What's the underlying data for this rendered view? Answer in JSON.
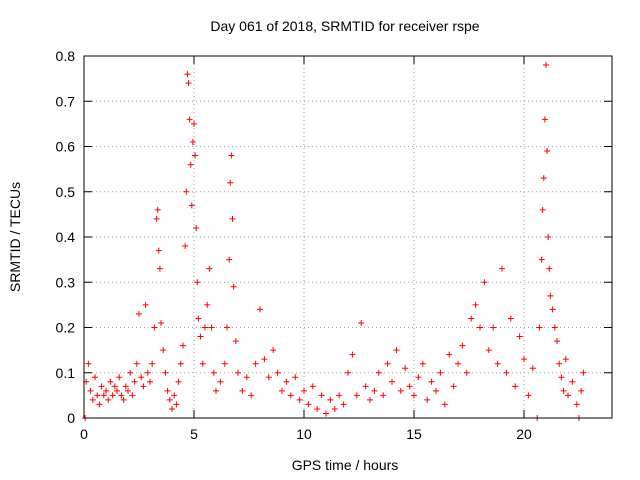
{
  "chart_data": {
    "type": "scatter",
    "title": "Day 061 of 2018, SRMTID for receiver rspe",
    "xlabel": "GPS time / hours",
    "ylabel": "SRMTID / TECUs",
    "xlim": [
      0,
      24
    ],
    "ylim": [
      0,
      0.8
    ],
    "x_ticks": [
      0,
      5,
      10,
      15,
      20
    ],
    "y_ticks": [
      0,
      0.1,
      0.2,
      0.3,
      0.4,
      0.5,
      0.6,
      0.7,
      0.8
    ],
    "x_tick_labels": [
      "0",
      "5",
      "10",
      "15",
      "20"
    ],
    "y_tick_labels": [
      "0",
      "0.1",
      "0.2",
      "0.3",
      "0.4",
      "0.5",
      "0.6",
      "0.7",
      "0.8"
    ],
    "grid": true,
    "marker": "+",
    "color": "#ff0000",
    "series": [
      {
        "name": "SRMTID",
        "points": [
          [
            0.05,
            0.0
          ],
          [
            0.1,
            0.08
          ],
          [
            0.2,
            0.12
          ],
          [
            0.3,
            0.06
          ],
          [
            0.4,
            0.04
          ],
          [
            0.5,
            0.09
          ],
          [
            0.6,
            0.05
          ],
          [
            0.7,
            0.03
          ],
          [
            0.8,
            0.07
          ],
          [
            0.9,
            0.05
          ],
          [
            1.0,
            0.06
          ],
          [
            1.1,
            0.04
          ],
          [
            1.2,
            0.08
          ],
          [
            1.3,
            0.05
          ],
          [
            1.4,
            0.07
          ],
          [
            1.5,
            0.06
          ],
          [
            1.6,
            0.09
          ],
          [
            1.7,
            0.05
          ],
          [
            1.8,
            0.04
          ],
          [
            1.9,
            0.07
          ],
          [
            2.0,
            0.06
          ],
          [
            2.1,
            0.1
          ],
          [
            2.2,
            0.05
          ],
          [
            2.3,
            0.08
          ],
          [
            2.4,
            0.12
          ],
          [
            2.5,
            0.23
          ],
          [
            2.6,
            0.09
          ],
          [
            2.7,
            0.07
          ],
          [
            2.8,
            0.25
          ],
          [
            2.9,
            0.1
          ],
          [
            3.0,
            0.08
          ],
          [
            3.1,
            0.12
          ],
          [
            3.2,
            0.2
          ],
          [
            3.3,
            0.44
          ],
          [
            3.35,
            0.46
          ],
          [
            3.4,
            0.37
          ],
          [
            3.45,
            0.33
          ],
          [
            3.5,
            0.21
          ],
          [
            3.6,
            0.15
          ],
          [
            3.7,
            0.1
          ],
          [
            3.8,
            0.06
          ],
          [
            3.9,
            0.04
          ],
          [
            4.0,
            0.02
          ],
          [
            4.1,
            0.05
          ],
          [
            4.2,
            0.03
          ],
          [
            4.3,
            0.08
          ],
          [
            4.4,
            0.12
          ],
          [
            4.5,
            0.16
          ],
          [
            4.6,
            0.38
          ],
          [
            4.65,
            0.5
          ],
          [
            4.7,
            0.76
          ],
          [
            4.75,
            0.74
          ],
          [
            4.8,
            0.66
          ],
          [
            4.85,
            0.56
          ],
          [
            4.9,
            0.47
          ],
          [
            4.95,
            0.61
          ],
          [
            5.0,
            0.65
          ],
          [
            5.05,
            0.58
          ],
          [
            5.1,
            0.42
          ],
          [
            5.15,
            0.3
          ],
          [
            5.2,
            0.22
          ],
          [
            5.3,
            0.18
          ],
          [
            5.4,
            0.12
          ],
          [
            5.5,
            0.2
          ],
          [
            5.6,
            0.25
          ],
          [
            5.7,
            0.33
          ],
          [
            5.8,
            0.2
          ],
          [
            5.9,
            0.1
          ],
          [
            6.0,
            0.06
          ],
          [
            6.2,
            0.08
          ],
          [
            6.4,
            0.12
          ],
          [
            6.5,
            0.2
          ],
          [
            6.6,
            0.35
          ],
          [
            6.65,
            0.52
          ],
          [
            6.7,
            0.58
          ],
          [
            6.75,
            0.44
          ],
          [
            6.8,
            0.29
          ],
          [
            6.9,
            0.17
          ],
          [
            7.0,
            0.1
          ],
          [
            7.2,
            0.06
          ],
          [
            7.4,
            0.09
          ],
          [
            7.6,
            0.05
          ],
          [
            7.8,
            0.12
          ],
          [
            8.0,
            0.24
          ],
          [
            8.2,
            0.13
          ],
          [
            8.4,
            0.09
          ],
          [
            8.6,
            0.15
          ],
          [
            8.8,
            0.1
          ],
          [
            9.0,
            0.06
          ],
          [
            9.2,
            0.08
          ],
          [
            9.4,
            0.05
          ],
          [
            9.6,
            0.09
          ],
          [
            9.8,
            0.04
          ],
          [
            10.0,
            0.06
          ],
          [
            10.2,
            0.03
          ],
          [
            10.4,
            0.07
          ],
          [
            10.6,
            0.02
          ],
          [
            10.8,
            0.05
          ],
          [
            11.0,
            0.01
          ],
          [
            11.2,
            0.04
          ],
          [
            11.4,
            0.02
          ],
          [
            11.6,
            0.05
          ],
          [
            11.8,
            0.03
          ],
          [
            12.0,
            0.1
          ],
          [
            12.2,
            0.14
          ],
          [
            12.4,
            0.05
          ],
          [
            12.6,
            0.21
          ],
          [
            12.8,
            0.07
          ],
          [
            13.0,
            0.04
          ],
          [
            13.2,
            0.06
          ],
          [
            13.4,
            0.1
          ],
          [
            13.6,
            0.05
          ],
          [
            13.8,
            0.12
          ],
          [
            14.0,
            0.08
          ],
          [
            14.2,
            0.15
          ],
          [
            14.4,
            0.06
          ],
          [
            14.6,
            0.11
          ],
          [
            14.8,
            0.07
          ],
          [
            15.0,
            0.05
          ],
          [
            15.2,
            0.09
          ],
          [
            15.4,
            0.12
          ],
          [
            15.6,
            0.04
          ],
          [
            15.8,
            0.08
          ],
          [
            16.0,
            0.06
          ],
          [
            16.2,
            0.1
          ],
          [
            16.4,
            0.03
          ],
          [
            16.6,
            0.14
          ],
          [
            16.8,
            0.07
          ],
          [
            17.0,
            0.12
          ],
          [
            17.2,
            0.16
          ],
          [
            17.4,
            0.1
          ],
          [
            17.6,
            0.22
          ],
          [
            17.8,
            0.25
          ],
          [
            18.0,
            0.2
          ],
          [
            18.2,
            0.3
          ],
          [
            18.4,
            0.15
          ],
          [
            18.6,
            0.2
          ],
          [
            18.8,
            0.12
          ],
          [
            19.0,
            0.33
          ],
          [
            19.2,
            0.1
          ],
          [
            19.4,
            0.22
          ],
          [
            19.6,
            0.07
          ],
          [
            19.8,
            0.18
          ],
          [
            20.0,
            0.13
          ],
          [
            20.2,
            0.05
          ],
          [
            20.4,
            0.11
          ],
          [
            20.6,
            0.0
          ],
          [
            20.7,
            0.2
          ],
          [
            20.8,
            0.35
          ],
          [
            20.85,
            0.46
          ],
          [
            20.9,
            0.53
          ],
          [
            20.95,
            0.66
          ],
          [
            21.0,
            0.78
          ],
          [
            21.05,
            0.59
          ],
          [
            21.1,
            0.4
          ],
          [
            21.15,
            0.33
          ],
          [
            21.2,
            0.27
          ],
          [
            21.3,
            0.24
          ],
          [
            21.4,
            0.2
          ],
          [
            21.5,
            0.17
          ],
          [
            21.6,
            0.12
          ],
          [
            21.7,
            0.09
          ],
          [
            21.8,
            0.06
          ],
          [
            21.9,
            0.13
          ],
          [
            22.0,
            0.05
          ],
          [
            22.2,
            0.08
          ],
          [
            22.4,
            0.03
          ],
          [
            22.5,
            0.0
          ],
          [
            22.6,
            0.06
          ],
          [
            22.7,
            0.1
          ]
        ]
      }
    ]
  }
}
